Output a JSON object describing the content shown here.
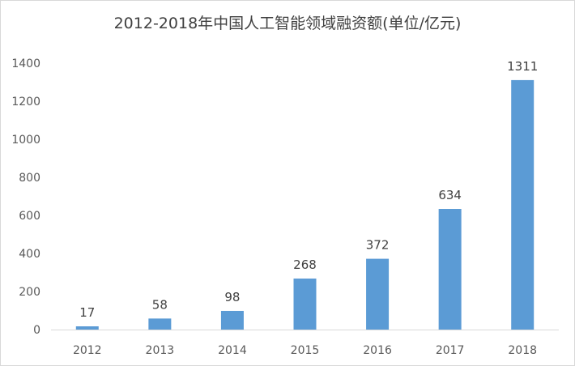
{
  "chart_data": {
    "type": "bar",
    "title": "2012-2018年中国人工智能领域融资额(单位/亿元)",
    "categories": [
      "2012",
      "2013",
      "2014",
      "2015",
      "2016",
      "2017",
      "2018"
    ],
    "values": [
      17,
      58,
      98,
      268,
      372,
      634,
      1311
    ],
    "data_labels": [
      "17",
      "58",
      "98",
      "268",
      "372",
      "634",
      "1311"
    ],
    "xlabel": "",
    "ylabel": "",
    "ylim": [
      0,
      1400
    ],
    "yticks": [
      "0",
      "200",
      "400",
      "600",
      "800",
      "1000",
      "1200",
      "1400"
    ],
    "grid": false,
    "legend": "none",
    "bar_color": "#5b9bd5"
  }
}
